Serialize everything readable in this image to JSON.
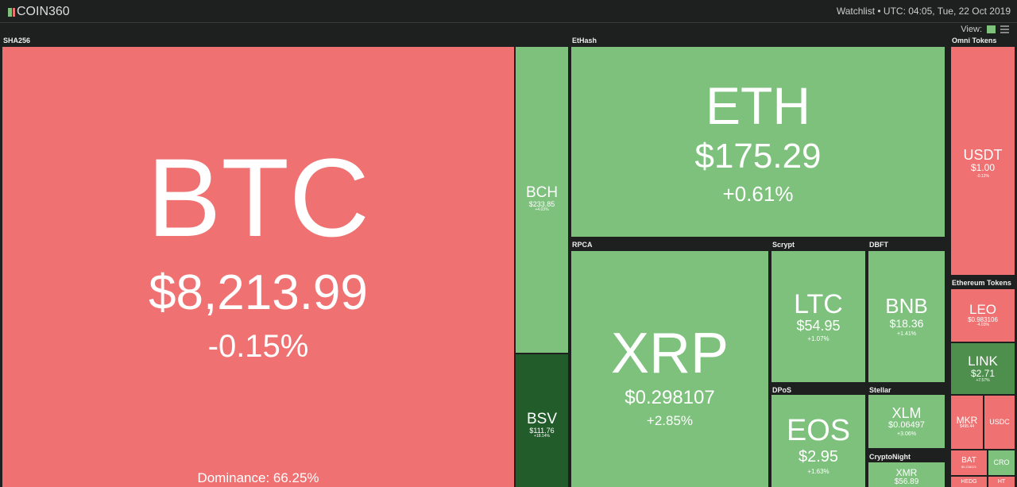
{
  "header": {
    "logo": "COIN360",
    "status": "Watchlist • UTC: 04:05, Tue, 22 Oct 2019",
    "view_label": "View:"
  },
  "groups": {
    "sha256": "SHA256",
    "ethash": "EtHash",
    "omni": "Omni Tokens",
    "rpca": "RPCA",
    "scrypt": "Scrypt",
    "dbft": "DBFT",
    "ethereum": "Ethereum Tokens",
    "dpos": "DPoS",
    "stellar": "Stellar",
    "cryptonight": "CryptoNight"
  },
  "colors": {
    "down": "#ef7171",
    "up": "#7dc17d",
    "strong_up": "#225c2a",
    "mid_up": "#4e8f4e"
  },
  "coins": {
    "btc": {
      "sym": "BTC",
      "price": "$8,213.99",
      "chg": "-0.15%",
      "extra": "Dominance: 66.25%"
    },
    "bch": {
      "sym": "BCH",
      "price": "$233.85",
      "chg": "+4.03%"
    },
    "bsv": {
      "sym": "BSV",
      "price": "$111.76",
      "chg": "+18.14%"
    },
    "eth": {
      "sym": "ETH",
      "price": "$175.29",
      "chg": "+0.61%"
    },
    "xrp": {
      "sym": "XRP",
      "price": "$0.298107",
      "chg": "+2.85%"
    },
    "ltc": {
      "sym": "LTC",
      "price": "$54.95",
      "chg": "+1.07%"
    },
    "bnb": {
      "sym": "BNB",
      "price": "$18.36",
      "chg": "+1.41%"
    },
    "eos": {
      "sym": "EOS",
      "price": "$2.95",
      "chg": "+1.63%"
    },
    "xlm": {
      "sym": "XLM",
      "price": "$0.06497",
      "chg": "+3.06%"
    },
    "xmr": {
      "sym": "XMR",
      "price": "$56.89"
    },
    "usdt": {
      "sym": "USDT",
      "price": "$1.00",
      "chg": "-0.12%"
    },
    "leo": {
      "sym": "LEO",
      "price": "$0.983106",
      "chg": "-4.03%"
    },
    "link": {
      "sym": "LINK",
      "price": "$2.71",
      "chg": "+7.57%"
    },
    "mkr": {
      "sym": "MKR",
      "price": "$495.44"
    },
    "usdc": {
      "sym": "USDC"
    },
    "bat": {
      "sym": "BAT",
      "price": "$0.218221"
    },
    "cro": {
      "sym": "CRO"
    },
    "hedg": {
      "sym": "HEDG"
    },
    "ht": {
      "sym": "HT"
    }
  }
}
